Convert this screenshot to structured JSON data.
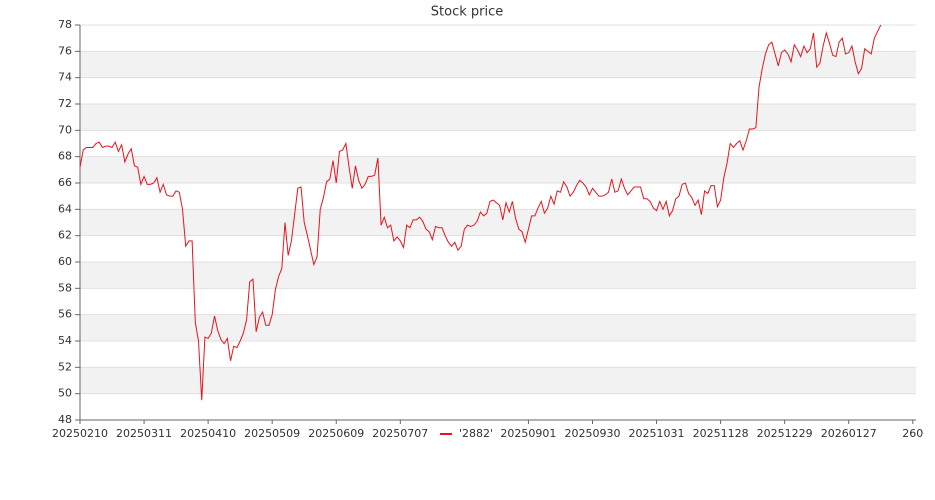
{
  "chart_data": {
    "type": "line",
    "title": "Stock price",
    "series": [
      {
        "name": "'2882'",
        "color": "#e8141c",
        "values": [
          67.2,
          68.5,
          68.7,
          68.7,
          68.7,
          69.0,
          69.1,
          68.7,
          68.8,
          68.8,
          68.7,
          69.1,
          68.4,
          68.9,
          67.6,
          68.2,
          68.6,
          67.3,
          67.2,
          65.9,
          66.5,
          65.9,
          65.9,
          66.0,
          66.4,
          65.3,
          65.9,
          65.1,
          65.0,
          65.0,
          65.4,
          65.3,
          64.0,
          61.2,
          61.6,
          61.6,
          55.4,
          54.0,
          49.5,
          54.3,
          54.2,
          54.6,
          55.9,
          54.8,
          54.1,
          53.8,
          54.2,
          52.5,
          53.6,
          53.5,
          54.0,
          54.6,
          55.6,
          58.5,
          58.7,
          54.7,
          55.8,
          56.2,
          55.2,
          55.2,
          56.0,
          57.9,
          58.9,
          59.5,
          63.0,
          60.5,
          61.6,
          63.6,
          65.6,
          65.7,
          63.0,
          62.0,
          60.9,
          59.8,
          60.4,
          64.0,
          64.9,
          66.1,
          66.3,
          67.7,
          66.0,
          68.4,
          68.5,
          69.0,
          67.2,
          65.6,
          67.3,
          66.2,
          65.6,
          65.9,
          66.5,
          66.5,
          66.6,
          67.9,
          62.8,
          63.4,
          62.6,
          62.8,
          61.6,
          61.9,
          61.6,
          61.1,
          62.8,
          62.6,
          63.2,
          63.2,
          63.4,
          63.1,
          62.5,
          62.3,
          61.7,
          62.7,
          62.6,
          62.6,
          62.0,
          61.5,
          61.2,
          61.5,
          60.9,
          61.2,
          62.5,
          62.8,
          62.7,
          62.8,
          63.1,
          63.8,
          63.5,
          63.7,
          64.6,
          64.7,
          64.5,
          64.3,
          63.2,
          64.5,
          63.8,
          64.6,
          63.3,
          62.5,
          62.3,
          61.5,
          62.5,
          63.5,
          63.5,
          64.1,
          64.6,
          63.7,
          64.1,
          65.0,
          64.4,
          65.4,
          65.3,
          66.1,
          65.7,
          65.0,
          65.3,
          65.8,
          66.2,
          66.0,
          65.7,
          65.1,
          65.6,
          65.3,
          65.0,
          65.0,
          65.1,
          65.3,
          66.3,
          65.3,
          65.4,
          66.3,
          65.6,
          65.1,
          65.4,
          65.7,
          65.7,
          65.7,
          64.8,
          64.8,
          64.6,
          64.1,
          63.9,
          64.6,
          64.0,
          64.6,
          63.5,
          63.9,
          64.8,
          65.0,
          65.9,
          66.0,
          65.2,
          64.9,
          64.3,
          64.7,
          63.6,
          65.4,
          65.2,
          65.8,
          65.8,
          64.2,
          64.7,
          66.4,
          67.5,
          69.0,
          68.7,
          69.0,
          69.2,
          68.5,
          69.2,
          70.1,
          70.1,
          70.2,
          73.3,
          74.7,
          75.8,
          76.5,
          76.7,
          75.8,
          74.9,
          75.9,
          76.1,
          75.8,
          75.2,
          76.5,
          76.1,
          75.6,
          76.4,
          75.9,
          76.2,
          77.4,
          74.8,
          75.1,
          76.4,
          77.4,
          76.6,
          75.7,
          75.6,
          76.7,
          77.0,
          75.8,
          75.9,
          76.4,
          75.2,
          74.3,
          74.7,
          76.2,
          76.0,
          75.8,
          77.0,
          77.5,
          78.0
        ]
      }
    ],
    "xlim": [
      0,
      261
    ],
    "xticks": [
      {
        "value": 0,
        "label": "20250210"
      },
      {
        "value": 20,
        "label": "20250311"
      },
      {
        "value": 40,
        "label": "20250410"
      },
      {
        "value": 60,
        "label": "20250509"
      },
      {
        "value": 80,
        "label": "20250609"
      },
      {
        "value": 100,
        "label": "20250707"
      },
      {
        "value": 140,
        "label": "20250901"
      },
      {
        "value": 160,
        "label": "20250930"
      },
      {
        "value": 180,
        "label": "20251031"
      },
      {
        "value": 200,
        "label": "20251128"
      },
      {
        "value": 220,
        "label": "20251229"
      },
      {
        "value": 240,
        "label": "20260127"
      },
      {
        "value": 260,
        "label": "260"
      }
    ],
    "ylim": [
      48,
      78
    ],
    "yticks": [
      48,
      50,
      52,
      54,
      56,
      58,
      60,
      62,
      64,
      66,
      68,
      70,
      72,
      74,
      76,
      78
    ],
    "grid": true,
    "legend": "bottom"
  }
}
